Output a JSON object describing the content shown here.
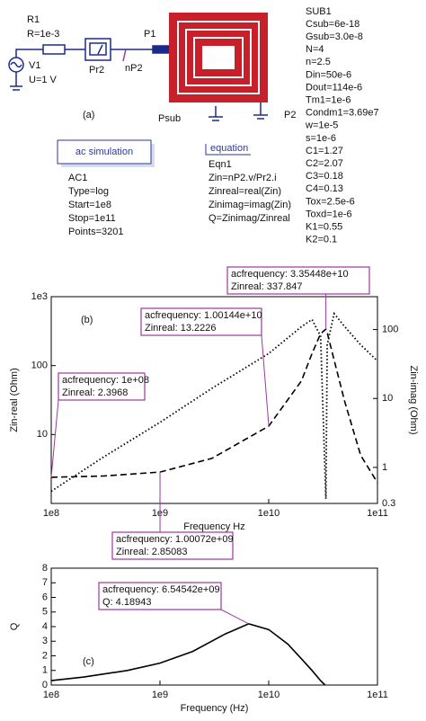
{
  "schematic": {
    "panel_label": "(a)",
    "resistor": {
      "name": "R1",
      "param": "R=1e-3"
    },
    "source": {
      "name": "V1",
      "param": "U=1 V"
    },
    "probe": "Pr2",
    "node": "nP2",
    "ports": [
      "P1",
      "P2"
    ],
    "substrate_port": "Psub",
    "sub": {
      "name": "SUB1",
      "params": [
        "Csub=6e-18",
        "Gsub=3.0e-8",
        "N=4",
        "n=2.5",
        "Din=50e-6",
        "Dout=114e-6",
        "Tm1=1e-6",
        "Condm1=3.69e7",
        "w=1e-5",
        "s=1e-6",
        "C1=1.27",
        "C2=2.07",
        "C3=0.18",
        "C4=0.13",
        "Tox=2.5e-6",
        "Toxd=1e-6",
        "K1=0.55",
        "K2=0.1"
      ]
    },
    "ac": {
      "header": "ac simulation",
      "lines": [
        "AC1",
        "Type=log",
        "Start=1e8",
        "Stop=1e11",
        "Points=3201"
      ]
    },
    "equation": {
      "header": "equation",
      "lines": [
        "Eqn1",
        "Zin=nP2.v/Pr2.i",
        "Zinreal=real(Zin)",
        "Zinimag=imag(Zin)",
        "Q=Zinimag/Zinreal"
      ]
    }
  },
  "chart_data": [
    {
      "type": "line",
      "panel_label": "(b)",
      "x_label": "Frequency Hz",
      "y_label": "Zin-real (Ohm)",
      "y2_label": "Zin-imag (Ohm)",
      "xscale": "log",
      "yscale": "log",
      "y2scale": "log",
      "xlim": [
        100000000,
        100000000000
      ],
      "xticks": [
        {
          "value": 100000000,
          "label": "1e8"
        },
        {
          "value": 1000000000,
          "label": "1e9"
        },
        {
          "value": 10000000000,
          "label": "1e10"
        },
        {
          "value": 100000000000,
          "label": "1e11"
        }
      ],
      "ylim": [
        1,
        1000
      ],
      "yticks": [
        {
          "value": 1000,
          "label": "1e3"
        },
        100,
        10
      ],
      "y2lim": [
        0.3,
        300
      ],
      "y2ticks": [
        0.3,
        1,
        10,
        100
      ],
      "x": [
        100000000,
        300000000,
        1000000000,
        3000000000,
        10000000000,
        20000000000,
        25000000000,
        30000000000,
        33544800000,
        34500000000,
        40000000000,
        50000000000,
        70000000000,
        100000000000
      ],
      "series": [
        {
          "name": "Zinreal",
          "color": "#000000",
          "style": "dashed",
          "values": [
            2.3968,
            2.5,
            2.85083,
            4.5,
            13.2226,
            60,
            150,
            290,
            337.847,
            300,
            120,
            30,
            5,
            2
          ]
        },
        {
          "name": "Zinimag",
          "color": "#000000",
          "style": "dotted",
          "axis": "y2",
          "values": [
            0.45,
            1.4,
            4.5,
            14,
            45,
            110,
            140,
            80,
            0.35,
            60,
            170,
            110,
            60,
            35
          ]
        }
      ],
      "annotations": [
        {
          "lines": [
            "acfrequency: 1e+08",
            "Zinreal: 2.3968"
          ],
          "x": 100000000,
          "y": 2.3968
        },
        {
          "lines": [
            "acfrequency: 1.00144e+10",
            "Zinreal: 13.2226"
          ],
          "x": 10014400000,
          "y": 13.2226
        },
        {
          "lines": [
            "acfrequency: 3.35448e+10",
            "Zinreal: 337.847"
          ],
          "x": 33544800000,
          "y": 337.847
        },
        {
          "lines": [
            "acfrequency: 1.00072e+09",
            "Zinreal: 2.85083"
          ],
          "x": 1000720000,
          "y": 2.85083
        }
      ],
      "annotation_color": "#9b3a9b"
    },
    {
      "type": "line",
      "panel_label": "(c)",
      "x_label": "Frequency (Hz)",
      "y_label": "Q",
      "xscale": "log",
      "yscale": "linear",
      "xlim": [
        100000000,
        100000000000
      ],
      "xticks": [
        {
          "value": 100000000,
          "label": "1e8"
        },
        {
          "value": 1000000000,
          "label": "1e9"
        },
        {
          "value": 10000000000,
          "label": "1e10"
        },
        {
          "value": 100000000000,
          "label": "1e11"
        }
      ],
      "ylim": [
        0,
        8
      ],
      "yticks": [
        0,
        1,
        2,
        3,
        4,
        5,
        6,
        7,
        8
      ],
      "x": [
        100000000,
        200000000,
        500000000,
        1000000000,
        2000000000,
        4000000000,
        6545420000,
        10000000000,
        15000000000,
        20000000000,
        25000000000,
        30000000000,
        33000000000
      ],
      "series": [
        {
          "name": "Q",
          "color": "#000000",
          "style": "solid",
          "values": [
            0.3,
            0.55,
            1.0,
            1.5,
            2.3,
            3.5,
            4.18943,
            3.8,
            2.8,
            1.8,
            1.0,
            0.3,
            0
          ]
        }
      ],
      "annotations": [
        {
          "lines": [
            "acfrequency: 6.54542e+09",
            "Q: 4.18943"
          ],
          "x": 6545420000,
          "y": 4.18943
        }
      ],
      "annotation_color": "#9b3a9b"
    }
  ]
}
